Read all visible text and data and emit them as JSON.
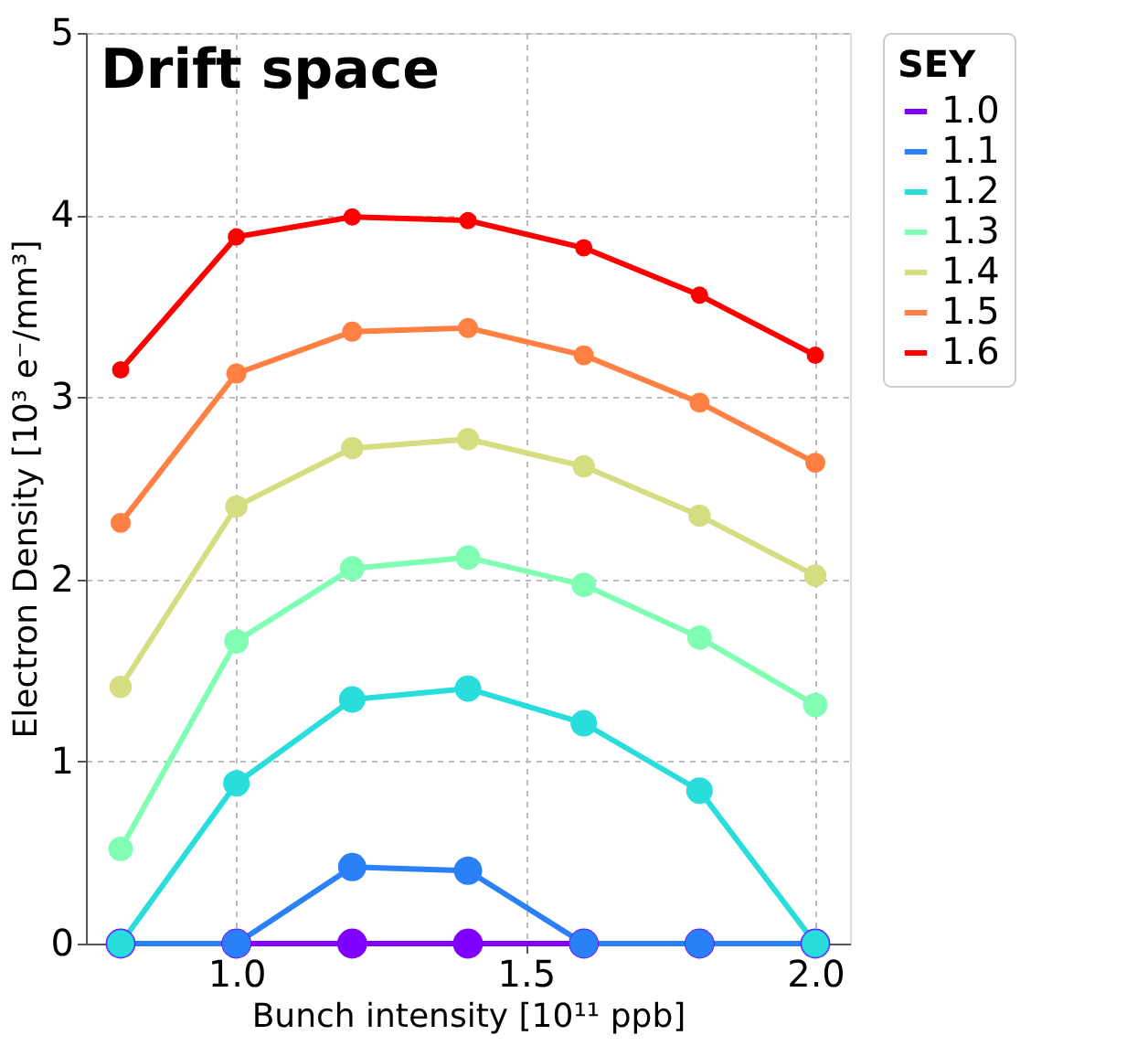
{
  "chart_data": {
    "type": "line",
    "title": "Drift space",
    "xlabel": "Bunch intensity [10¹¹ ppb]",
    "ylabel": "Electron Density [10³ e⁻/mm³]",
    "legend_title": "SEY",
    "x": [
      0.8,
      1.0,
      1.2,
      1.4,
      1.6,
      1.8,
      2.0
    ],
    "series": [
      {
        "name": "1.0",
        "color": "#8000ff",
        "values": [
          0,
          0,
          0,
          0,
          0,
          0,
          0
        ]
      },
      {
        "name": "1.1",
        "color": "#2a80f6",
        "values": [
          0,
          0,
          0.42,
          0.4,
          0,
          0,
          0
        ]
      },
      {
        "name": "1.2",
        "color": "#2adddd",
        "values": [
          0,
          0.88,
          1.34,
          1.4,
          1.21,
          0.84,
          0
        ]
      },
      {
        "name": "1.3",
        "color": "#80ffb4",
        "values": [
          0.52,
          1.66,
          2.06,
          2.12,
          1.97,
          1.68,
          1.31
        ]
      },
      {
        "name": "1.4",
        "color": "#d4dd80",
        "values": [
          1.41,
          2.4,
          2.72,
          2.77,
          2.62,
          2.35,
          2.02
        ]
      },
      {
        "name": "1.5",
        "color": "#ff8042",
        "values": [
          2.31,
          3.13,
          3.36,
          3.38,
          3.23,
          2.97,
          2.64
        ]
      },
      {
        "name": "1.6",
        "color": "#ff0000",
        "values": [
          3.15,
          3.88,
          3.99,
          3.97,
          3.82,
          3.56,
          3.23
        ]
      }
    ],
    "xlim": [
      0.74,
      2.06
    ],
    "xticks": [
      {
        "value": 1,
        "label": "1.0"
      },
      {
        "value": 1.5,
        "label": "1.5"
      },
      {
        "value": 2,
        "label": "2.0"
      }
    ],
    "ylim": [
      0,
      5
    ],
    "yticks": [
      0,
      1,
      2,
      3,
      4,
      5
    ],
    "grid": true,
    "legend": "right",
    "marker": "circle",
    "line_style": "solid"
  }
}
